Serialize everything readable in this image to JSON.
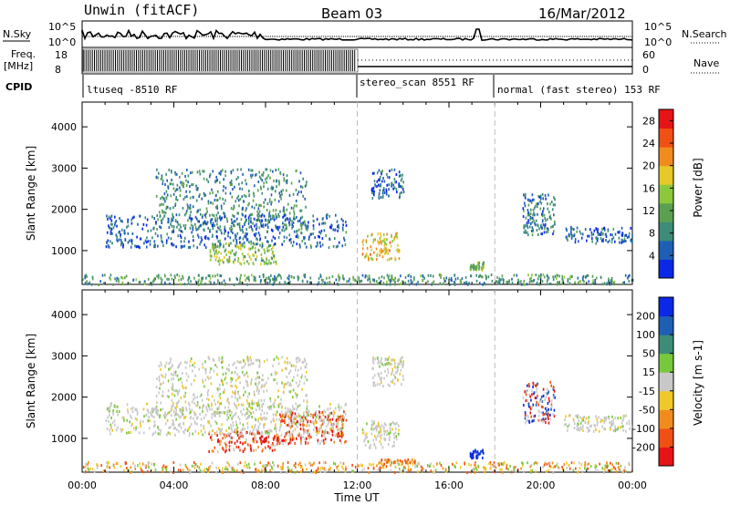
{
  "header": {
    "station": "Unwin (fitACF)",
    "beam": "Beam 03",
    "date": "16/Mar/2012"
  },
  "status_panel": {
    "nsky_label": "N.Sky",
    "nsky_ticks": [
      "10^5",
      "10^0"
    ],
    "nsearch_label": "N.Search",
    "nsearch_ticks": [
      "10^5",
      "10^0"
    ],
    "freq_label": "Freq.",
    "freq_unit": "[MHz]",
    "freq_ticks": [
      "18",
      "8"
    ],
    "nave_label": "Nave",
    "nave_ticks": [
      "60",
      "0"
    ],
    "cpid_label": "CPID",
    "programs": [
      {
        "name": "ltuseq -8510 RF",
        "start": 0,
        "end": 12
      },
      {
        "name": "stereo_scan 8551 RF",
        "start": 12,
        "end": 18
      },
      {
        "name": "normal (fast stereo) 153 RF",
        "start": 18,
        "end": 24
      }
    ]
  },
  "chart_data": [
    {
      "type": "heatmap",
      "title": "Power",
      "xlabel": "Time UT",
      "ylabel": "Slant Range [km]",
      "colorbar_label": "Power [dB]",
      "colorbar_ticks": [
        "4",
        "8",
        "12",
        "16",
        "20",
        "24",
        "28"
      ],
      "colorbar_range": [
        0,
        30
      ],
      "colorbar_colors": [
        "#0a28e6",
        "#1e5fb4",
        "#3c8c78",
        "#5aa050",
        "#8cc83c",
        "#e6c828",
        "#f08c1e",
        "#f05014",
        "#e61414"
      ],
      "xlim": [
        0,
        24
      ],
      "ylim": [
        180,
        4600
      ],
      "y_ticks": [
        "1000",
        "2000",
        "3000",
        "4000"
      ],
      "program_boundaries": [
        12,
        18
      ],
      "clusters": [
        {
          "t": [
            3.2,
            9.8
          ],
          "r": [
            1500,
            3000
          ],
          "level": 0.25
        },
        {
          "t": [
            5.5,
            8.5
          ],
          "r": [
            700,
            1200
          ],
          "level": 0.45
        },
        {
          "t": [
            1.0,
            11.5
          ],
          "r": [
            1100,
            1900
          ],
          "level": 0.15
        },
        {
          "t": [
            12.2,
            13.8
          ],
          "r": [
            800,
            1450
          ],
          "level": 0.65
        },
        {
          "t": [
            12.6,
            14.0
          ],
          "r": [
            2300,
            3000
          ],
          "level": 0.15
        },
        {
          "t": [
            16.9,
            17.5
          ],
          "r": [
            550,
            750
          ],
          "level": 0.4
        },
        {
          "t": [
            19.2,
            20.6
          ],
          "r": [
            1400,
            2400
          ],
          "level": 0.2
        },
        {
          "t": [
            21.0,
            24.0
          ],
          "r": [
            1200,
            1600
          ],
          "level": 0.15
        },
        {
          "t": [
            0.0,
            24.0
          ],
          "r": [
            200,
            450
          ],
          "level": 0.3
        }
      ]
    },
    {
      "type": "heatmap",
      "title": "Velocity",
      "xlabel": "Time UT",
      "ylabel": "Slant Range [km]",
      "colorbar_label": "Velocity [m s-1]",
      "colorbar_ticks": [
        "200",
        "100",
        "50",
        "15",
        "-15",
        "-50",
        "-100",
        "-200"
      ],
      "colorbar_colors": [
        "#0a28e6",
        "#1e5fb4",
        "#3c8c78",
        "#78c83c",
        "#c8c8c8",
        "#f0c828",
        "#f08c1e",
        "#f05014",
        "#e61414"
      ],
      "xlim": [
        0,
        24
      ],
      "ylim": [
        180,
        4600
      ],
      "y_ticks": [
        "1000",
        "2000",
        "3000",
        "4000"
      ],
      "program_boundaries": [
        12,
        18
      ],
      "clusters": [
        {
          "t": [
            3.2,
            9.8
          ],
          "r": [
            1500,
            3000
          ],
          "class": "low"
        },
        {
          "t": [
            5.5,
            8.5
          ],
          "r": [
            700,
            1200
          ],
          "class": "neg-strong"
        },
        {
          "t": [
            8.5,
            11.5
          ],
          "r": [
            900,
            1700
          ],
          "class": "neg-strong"
        },
        {
          "t": [
            1.0,
            11.5
          ],
          "r": [
            1100,
            1900
          ],
          "class": "low"
        },
        {
          "t": [
            12.2,
            13.8
          ],
          "r": [
            800,
            1450
          ],
          "class": "low"
        },
        {
          "t": [
            12.6,
            14.0
          ],
          "r": [
            2300,
            3000
          ],
          "class": "low"
        },
        {
          "t": [
            13.0,
            14.5
          ],
          "r": [
            400,
            520
          ],
          "class": "neg"
        },
        {
          "t": [
            16.9,
            17.5
          ],
          "r": [
            550,
            750
          ],
          "class": "pos-strong"
        },
        {
          "t": [
            19.2,
            20.6
          ],
          "r": [
            1400,
            2400
          ],
          "class": "mixed"
        },
        {
          "t": [
            21.0,
            24.0
          ],
          "r": [
            1200,
            1600
          ],
          "class": "low"
        },
        {
          "t": [
            0.0,
            24.0
          ],
          "r": [
            200,
            450
          ],
          "class": "mixed-low"
        }
      ]
    }
  ],
  "time_axis": {
    "label": "Time UT",
    "ticks": [
      "00:00",
      "04:00",
      "08:00",
      "12:00",
      "16:00",
      "20:00",
      "00:00"
    ]
  }
}
